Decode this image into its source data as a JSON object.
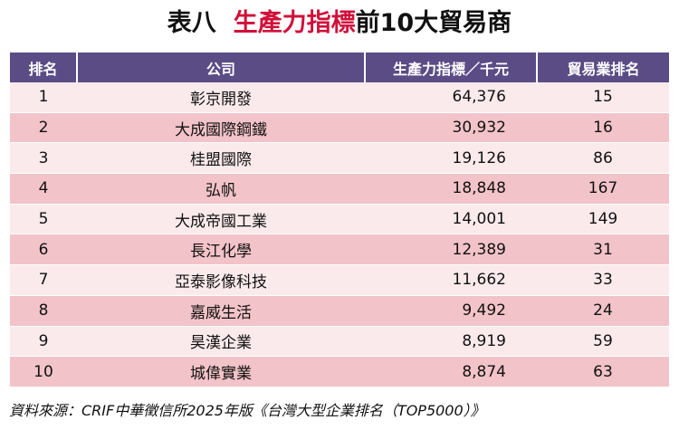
{
  "title": {
    "prefix": "表八",
    "highlight": "生產力指標",
    "suffix": "前10大貿易商"
  },
  "table": {
    "headers": [
      "排名",
      "公司",
      "生產力指標／千元",
      "貿易業排名"
    ],
    "rows": [
      {
        "rank": "1",
        "company": "彰京開發",
        "index": "64,376",
        "trade_rank": "15"
      },
      {
        "rank": "2",
        "company": "大成國際鋼鐵",
        "index": "30,932",
        "trade_rank": "16"
      },
      {
        "rank": "3",
        "company": "桂盟國際",
        "index": "19,126",
        "trade_rank": "86"
      },
      {
        "rank": "4",
        "company": "弘帆",
        "index": "18,848",
        "trade_rank": "167"
      },
      {
        "rank": "5",
        "company": "大成帝國工業",
        "index": "14,001",
        "trade_rank": "149"
      },
      {
        "rank": "6",
        "company": "長江化學",
        "index": "12,389",
        "trade_rank": "31"
      },
      {
        "rank": "7",
        "company": "亞泰影像科技",
        "index": "11,662",
        "trade_rank": "33"
      },
      {
        "rank": "8",
        "company": "嘉威生活",
        "index": "9,492",
        "trade_rank": "24"
      },
      {
        "rank": "9",
        "company": "昊漢企業",
        "index": "8,919",
        "trade_rank": "59"
      },
      {
        "rank": "10",
        "company": "城偉實業",
        "index": "8,874",
        "trade_rank": "63"
      }
    ]
  },
  "source": "資料來源：CRIF中華徵信所2025年版《台灣大型企業排名（TOP5000）》",
  "colors": {
    "header_bg": "#5b4c86",
    "row_light": "#fbeaec",
    "row_dark": "#f2c3c8",
    "title_highlight": "#d0103a"
  }
}
